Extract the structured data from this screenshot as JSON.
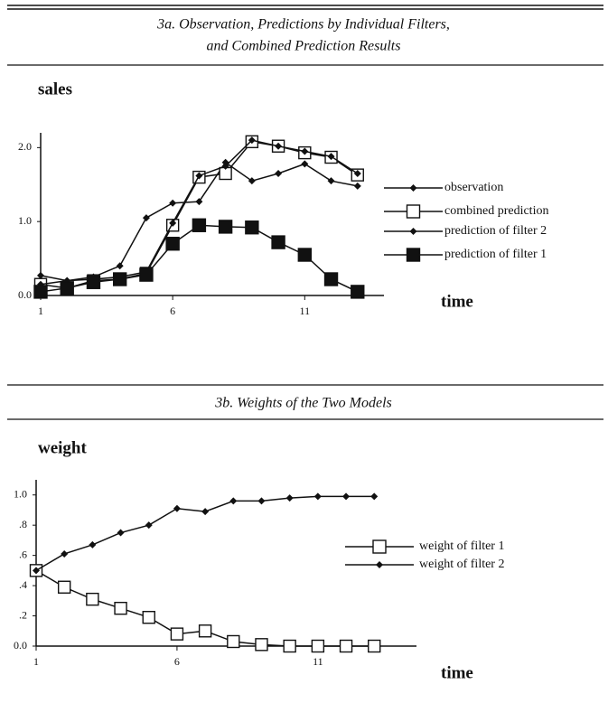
{
  "chart_data": [
    {
      "type": "line",
      "title": [
        "3a. Observation, Predictions by Individual Filters,",
        "and Combined Prediction Results"
      ],
      "y_label": "sales",
      "x_label": "time",
      "x": [
        1,
        2,
        3,
        4,
        5,
        6,
        7,
        8,
        9,
        10,
        11,
        12,
        13
      ],
      "xlim": [
        1,
        14
      ],
      "xticks": [
        1,
        6,
        11
      ],
      "ylim": [
        0,
        2.2
      ],
      "yticks": [
        {
          "value": 0,
          "label": "0.0"
        },
        {
          "value": 1,
          "label": "1.0"
        },
        {
          "value": 2,
          "label": "2.0"
        }
      ],
      "series": [
        {
          "name": "observation",
          "color": "#111111",
          "marker": "diamond",
          "values": [
            0.27,
            0.2,
            0.25,
            0.4,
            1.05,
            1.25,
            1.27,
            1.8,
            1.55,
            1.65,
            1.78,
            1.55,
            1.48
          ]
        },
        {
          "name": "combined prediction",
          "color": "#111111",
          "marker": "square-open",
          "values": [
            0.15,
            0.1,
            0.2,
            0.22,
            0.3,
            0.95,
            1.6,
            1.65,
            2.08,
            2.02,
            1.93,
            1.87,
            1.63
          ]
        },
        {
          "name": "prediction of filter 2",
          "color": "#111111",
          "marker": "diamond",
          "values": [
            0.15,
            0.2,
            0.22,
            0.25,
            0.32,
            0.98,
            1.62,
            1.75,
            2.1,
            2.02,
            1.95,
            1.88,
            1.65
          ]
        },
        {
          "name": "prediction of filter 1",
          "color": "#111111",
          "marker": "square-filled",
          "values": [
            0.05,
            0.1,
            0.18,
            0.22,
            0.28,
            0.7,
            0.95,
            0.93,
            0.92,
            0.72,
            0.55,
            0.22,
            0.05
          ]
        }
      ]
    },
    {
      "type": "line",
      "title": [
        "3b. Weights of the Two Models"
      ],
      "y_label": "weight",
      "x_label": "time",
      "x": [
        1,
        2,
        3,
        4,
        5,
        6,
        7,
        8,
        9,
        10,
        11,
        12,
        13
      ],
      "xlim": [
        1,
        14.5
      ],
      "xticks": [
        1,
        6,
        11
      ],
      "ylim": [
        0,
        1.1
      ],
      "yticks": [
        {
          "value": 0,
          "label": "0.0"
        },
        {
          "value": 0.2,
          "label": ".2"
        },
        {
          "value": 0.4,
          "label": ".4"
        },
        {
          "value": 0.6,
          "label": ".6"
        },
        {
          "value": 0.8,
          "label": ".8"
        },
        {
          "value": 1,
          "label": "1.0"
        }
      ],
      "series": [
        {
          "name": "weight of filter 1",
          "color": "#111111",
          "marker": "square-open",
          "values": [
            0.5,
            0.39,
            0.31,
            0.25,
            0.19,
            0.08,
            0.1,
            0.03,
            0.01,
            0,
            0,
            0,
            0
          ]
        },
        {
          "name": "weight of filter 2",
          "color": "#111111",
          "marker": "diamond",
          "values": [
            0.5,
            0.61,
            0.67,
            0.75,
            0.8,
            0.91,
            0.89,
            0.96,
            0.96,
            0.98,
            0.99,
            0.99,
            0.99
          ]
        }
      ]
    }
  ]
}
